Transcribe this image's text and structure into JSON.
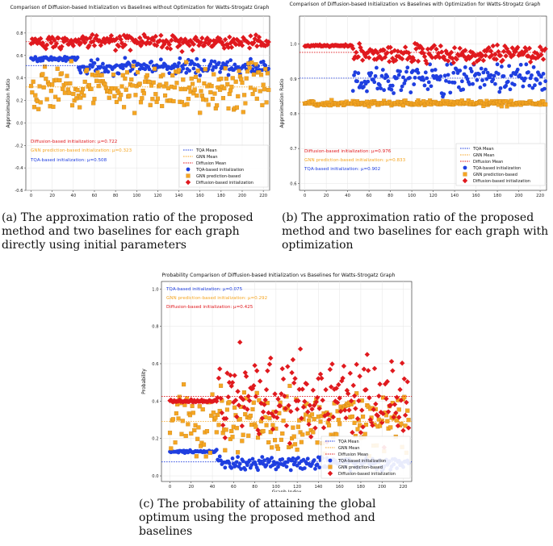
{
  "captions": {
    "a": "(a) The approximation ratio of the proposed method and two baselines for each graph directly using initial parameters",
    "b": "(b) The approximation ratio of the proposed method and two baselines for each graph with optimization",
    "c": "(c) The probability of attaining the global optimum using the proposed method and baselines"
  },
  "colors": {
    "tqa": "#1f3fe0",
    "gnn": "#f5a623",
    "diff": "#e0191e"
  },
  "chart_data": [
    {
      "id": "a",
      "type": "scatter",
      "title": "Comparison of Diffusion-based Initialization vs Baselines without Optimization for Watts-Strogatz Graph",
      "xlabel": "Graph Index",
      "ylabel": "Approximation Ratio",
      "xlim": [
        -5,
        226
      ],
      "ylim": [
        -0.6,
        0.95
      ],
      "xticks": [
        0,
        20,
        40,
        60,
        80,
        100,
        120,
        140,
        160,
        180,
        200,
        220
      ],
      "yticks": [
        -0.6,
        -0.4,
        -0.2,
        0.0,
        0.2,
        0.4,
        0.6,
        0.8
      ],
      "ytick_labels": [
        "-0.6",
        "-0.4",
        "-0.2",
        "0.0",
        "0.2",
        "0.4",
        "0.6",
        "0.8"
      ],
      "grid": true,
      "legend_placement": "lower-right",
      "legend": [
        "TQA Mean",
        "GNN Mean",
        "Diffusion Mean",
        "TQA-based initialization",
        "GNN prediction-based",
        "Diffusion-based initialization"
      ],
      "means": {
        "tqa": 0.51,
        "gnn": 0.32,
        "diff": 0.722
      },
      "annotations": [
        {
          "text": "Diffusion-based initialization: μ=0.722",
          "series": "diff"
        },
        {
          "text": "GNN prediction-based initialization: μ=0.323",
          "series": "gnn"
        },
        {
          "text": "TQA-based initialization: μ=0.508",
          "series": "tqa"
        }
      ],
      "series": [
        {
          "key": "tqa",
          "marker": "circle",
          "segments": [
            {
              "from": 0,
              "to": 44,
              "mean": 0.57,
              "spread": 0.03
            },
            {
              "from": 45,
              "to": 225,
              "mean": 0.5,
              "spread": 0.1
            }
          ]
        },
        {
          "key": "gnn",
          "marker": "square",
          "segments": [
            {
              "from": 0,
              "to": 225,
              "mean": 0.32,
              "spread": 0.3
            }
          ]
        },
        {
          "key": "diff",
          "marker": "diamond",
          "segments": [
            {
              "from": 0,
              "to": 225,
              "mean": 0.72,
              "spread": 0.09
            }
          ]
        }
      ]
    },
    {
      "id": "b",
      "type": "scatter",
      "title": "Comparison of Diffusion-based Initialization vs Baselines with Optimization for Watts-Strogatz Graph",
      "xlabel": "Graph Index",
      "ylabel": "Approximation Ratio",
      "xlim": [
        -5,
        226
      ],
      "ylim": [
        0.58,
        1.08
      ],
      "xticks": [
        0,
        20,
        40,
        60,
        80,
        100,
        120,
        140,
        160,
        180,
        200,
        220
      ],
      "yticks": [
        0.6,
        0.7,
        0.8,
        0.9,
        1.0
      ],
      "ytick_labels": [
        "0.6",
        "0.7",
        "0.8",
        "0.9",
        "1.0"
      ],
      "grid": true,
      "legend_placement": "lower-right",
      "legend": [
        "TQA Mean",
        "GNN Mean",
        "Diffusion Mean",
        "TQA-based initialization",
        "GNN prediction-based",
        "Diffusion-based initialization"
      ],
      "means": {
        "tqa": 0.902,
        "gnn": 0.833,
        "diff": 0.976
      },
      "annotations": [
        {
          "text": "Diffusion-based initialization: μ=0.976",
          "series": "diff"
        },
        {
          "text": "GNN prediction-based initialization: μ=0.833",
          "series": "gnn"
        },
        {
          "text": "TQA-based initialization: μ=0.902",
          "series": "tqa"
        }
      ],
      "series": [
        {
          "key": "tqa",
          "marker": "circle",
          "segments": [
            {
              "from": 45,
              "to": 225,
              "mean": 0.9,
              "spread": 0.06
            }
          ]
        },
        {
          "key": "gnn",
          "marker": "square",
          "segments": [
            {
              "from": 0,
              "to": 225,
              "mean": 0.83,
              "spread": 0.01
            }
          ]
        },
        {
          "key": "diff",
          "marker": "diamond",
          "segments": [
            {
              "from": 0,
              "to": 44,
              "mean": 0.995,
              "spread": 0.004
            },
            {
              "from": 45,
              "to": 225,
              "mean": 0.97,
              "spread": 0.04
            }
          ]
        }
      ]
    },
    {
      "id": "c",
      "type": "scatter",
      "title": "Probability Comparison of Diffusion-based Initialization vs Baselines for Watts-Strogatz Graph",
      "xlabel": "Graph Index",
      "ylabel": "Probability",
      "xlim": [
        -8,
        228
      ],
      "ylim": [
        -0.03,
        1.04
      ],
      "xticks": [
        0,
        20,
        40,
        60,
        80,
        100,
        120,
        140,
        160,
        180,
        200,
        220
      ],
      "yticks": [
        0.0,
        0.2,
        0.4,
        0.6,
        0.8,
        1.0
      ],
      "ytick_labels": [
        "0.0",
        "0.2",
        "0.4",
        "0.6",
        "0.8",
        "1.0"
      ],
      "grid": true,
      "legend_placement": "lower-right",
      "legend": [
        "TQA Mean",
        "GNN Mean",
        "Diffusion Mean",
        "TQA-based initialization",
        "GNN prediction-based",
        "Diffusion-based initialization"
      ],
      "means": {
        "tqa": 0.075,
        "gnn": 0.292,
        "diff": 0.425
      },
      "annotations": [
        {
          "text": "TQA-based initialization: μ=0.075",
          "series": "tqa"
        },
        {
          "text": "GNN prediction-based initialization: μ=0.292",
          "series": "gnn"
        },
        {
          "text": "Diffusion-based initialization: μ=0.425",
          "series": "diff"
        }
      ],
      "series": [
        {
          "key": "tqa",
          "marker": "circle",
          "segments": [
            {
              "from": 0,
              "to": 44,
              "mean": 0.13,
              "spread": 0.01
            },
            {
              "from": 45,
              "to": 225,
              "mean": 0.07,
              "spread": 0.05
            }
          ]
        },
        {
          "key": "gnn",
          "marker": "square",
          "segments": [
            {
              "from": 0,
              "to": 225,
              "mean": 0.29,
              "spread": 0.25
            }
          ]
        },
        {
          "key": "diff",
          "marker": "diamond",
          "segments": [
            {
              "from": 0,
              "to": 44,
              "mean": 0.4,
              "spread": 0.01
            },
            {
              "from": 45,
              "to": 225,
              "mean": 0.43,
              "spread": 0.32
            }
          ]
        }
      ]
    }
  ]
}
